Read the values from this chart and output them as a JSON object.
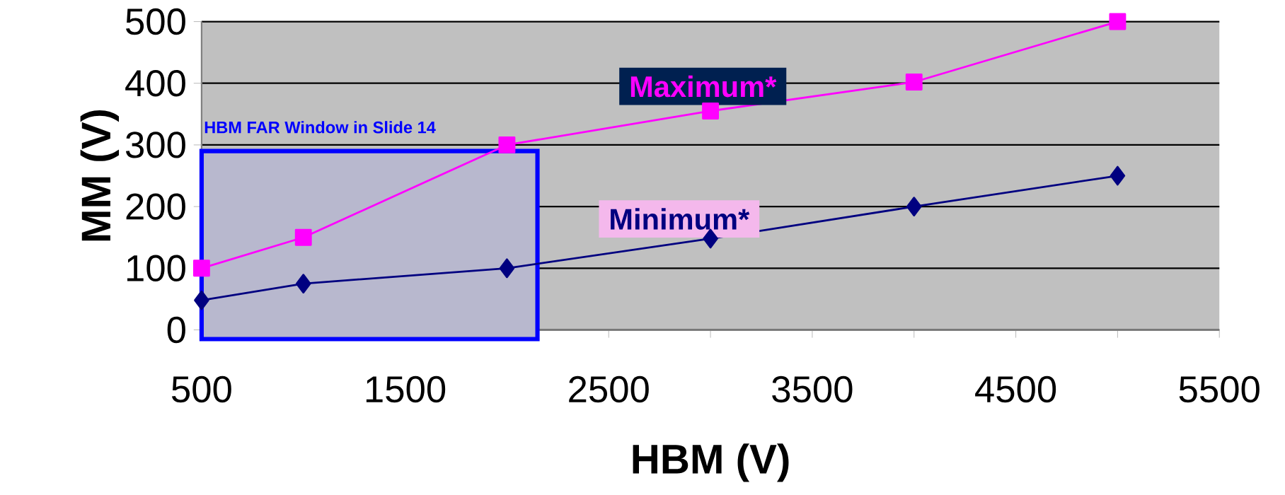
{
  "chart_data": {
    "type": "line",
    "xlabel": "HBM (V)",
    "ylabel": "MM (V)",
    "x": [
      500,
      1000,
      2000,
      3000,
      4000,
      5000
    ],
    "series": [
      {
        "name": "Maximum*",
        "color": "#ff00ff",
        "marker": "square",
        "values": [
          100,
          150,
          300,
          355,
          402,
          500
        ]
      },
      {
        "name": "Minimum*",
        "color": "#000080",
        "marker": "diamond",
        "values": [
          48,
          75,
          100,
          148,
          200,
          250
        ]
      }
    ],
    "xlim": [
      500,
      5500
    ],
    "xticks": [
      500,
      {
        "value": 1000,
        "label": null
      },
      1500,
      {
        "value": 2000,
        "label": null
      },
      2500,
      {
        "value": 3000,
        "label": null
      },
      3500,
      {
        "value": 4000,
        "label": null
      },
      4500,
      {
        "value": 5000,
        "label": null
      },
      5500
    ],
    "ylim": [
      0,
      500
    ],
    "yticks": [
      0,
      100,
      200,
      300,
      400,
      500
    ],
    "grid": "y",
    "bands": [
      {
        "axis": "x",
        "from": 500,
        "to": 2150,
        "label": "HBM FAR Window in Slide 14",
        "color": "#0000ff"
      }
    ]
  }
}
